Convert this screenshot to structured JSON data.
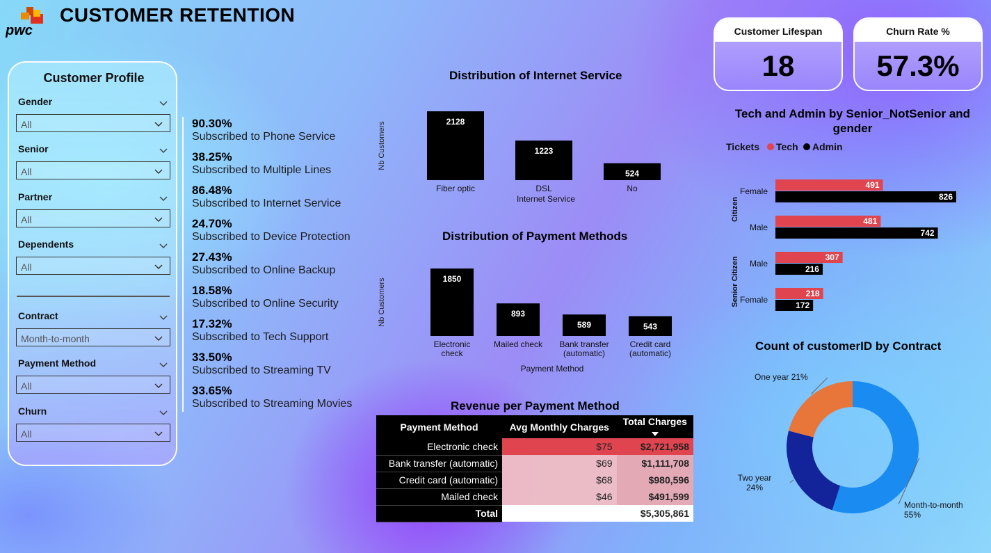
{
  "header": {
    "logo_text": "pwc",
    "title": "CUSTOMER RETENTION"
  },
  "kpis": [
    {
      "label": "Customer Lifespan",
      "value": "18"
    },
    {
      "label": "Churn Rate %",
      "value": "57.3%"
    }
  ],
  "filters": {
    "title": "Customer Profile",
    "items": [
      {
        "label": "Gender",
        "value": "All"
      },
      {
        "label": "Senior",
        "value": "All"
      },
      {
        "label": "Partner",
        "value": "All"
      },
      {
        "label": "Dependents",
        "value": "All"
      },
      {
        "label": "Contract",
        "value": "Month-to-month"
      },
      {
        "label": "Payment Method",
        "value": "All"
      },
      {
        "label": "Churn",
        "value": "All"
      }
    ]
  },
  "subscriptions": [
    {
      "value": "90.30%",
      "label": "Subscribed to Phone Service"
    },
    {
      "value": "38.25%",
      "label": "Subscribed to Multiple Lines"
    },
    {
      "value": "86.48%",
      "label": "Subscribed to Internet Service"
    },
    {
      "value": "24.70%",
      "label": "Subscribed to Device Protection"
    },
    {
      "value": "27.43%",
      "label": "Subscribed to Online Backup"
    },
    {
      "value": "18.58%",
      "label": "Subscribed to Online Security"
    },
    {
      "value": "17.32%",
      "label": "Subscribed to Tech Support"
    },
    {
      "value": "33.50%",
      "label": "Subscribed to Streaming TV"
    },
    {
      "value": "33.65%",
      "label": "Subscribed to Streaming Movies"
    }
  ],
  "chart_data": [
    {
      "type": "bar",
      "title": "Distribution of Internet Service",
      "xlabel": "Internet Service",
      "ylabel": "Nb Customers",
      "categories": [
        "Fiber optic",
        "DSL",
        "No"
      ],
      "values": [
        2128,
        1223,
        524
      ]
    },
    {
      "type": "bar",
      "title": "Distribution of Payment Methods",
      "xlabel": "Payment Method",
      "ylabel": "Nb Customers",
      "categories": [
        [
          "Electronic",
          "check"
        ],
        [
          "Mailed check"
        ],
        [
          "Bank transfer",
          "(automatic)"
        ],
        [
          "Credit card",
          "(automatic)"
        ]
      ],
      "values": [
        1850,
        893,
        589,
        543
      ]
    },
    {
      "type": "bar",
      "orientation": "horizontal",
      "title": "Tech and Admin by Senior_NotSenior and gender",
      "legend_title": "Tickets",
      "groups": [
        {
          "label": "Citizen",
          "rows": [
            "Female",
            "Male"
          ]
        },
        {
          "label": "Senior Citizen",
          "rows": [
            "Male",
            "Female"
          ]
        }
      ],
      "series": [
        {
          "name": "Tech",
          "color": "#e0454f",
          "values": [
            491,
            481,
            307,
            218
          ]
        },
        {
          "name": "Admin",
          "color": "#000000",
          "values": [
            826,
            742,
            216,
            172
          ]
        }
      ]
    },
    {
      "type": "pie",
      "donut": true,
      "title": "Count of customerID by Contract",
      "slices": [
        {
          "name": "Month-to-month",
          "percent": 55,
          "label": "55%",
          "color": "#1a8bf0"
        },
        {
          "name": "Two year",
          "percent": 24,
          "label": "24%",
          "color": "#13239a"
        },
        {
          "name": "One year",
          "percent": 21,
          "label": "21%",
          "color": "#e8763a"
        }
      ]
    }
  ],
  "revenue_table": {
    "title": "Revenue per Payment Method",
    "headers": [
      "Payment Method",
      "Avg Monthly Charges",
      "Total Charges"
    ],
    "rows": [
      {
        "method": "Electronic check",
        "avg": "$75",
        "total": "$2,721,958",
        "avg_shade": 1.0,
        "total_shade": 1.0
      },
      {
        "method": "Bank transfer (automatic)",
        "avg": "$69",
        "total": "$1,111,708",
        "avg_shade": 0.25,
        "total_shade": 0.4
      },
      {
        "method": "Credit card (automatic)",
        "avg": "$68",
        "total": "$980,596",
        "avg_shade": 0.22,
        "total_shade": 0.35
      },
      {
        "method": "Mailed check",
        "avg": "$46",
        "total": "$491,599",
        "avg_shade": 0.2,
        "total_shade": 0.25
      }
    ],
    "total": {
      "label": "Total",
      "avg": "",
      "total": "$5,305,861"
    }
  }
}
